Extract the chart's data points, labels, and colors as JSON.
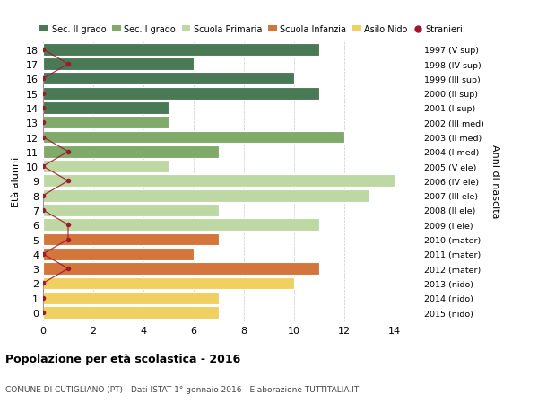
{
  "ages": [
    18,
    17,
    16,
    15,
    14,
    13,
    12,
    11,
    10,
    9,
    8,
    7,
    6,
    5,
    4,
    3,
    2,
    1,
    0
  ],
  "right_labels": [
    "1997 (V sup)",
    "1998 (IV sup)",
    "1999 (III sup)",
    "2000 (II sup)",
    "2001 (I sup)",
    "2002 (III med)",
    "2003 (II med)",
    "2004 (I med)",
    "2005 (V ele)",
    "2006 (IV ele)",
    "2007 (III ele)",
    "2008 (II ele)",
    "2009 (I ele)",
    "2010 (mater)",
    "2011 (mater)",
    "2012 (mater)",
    "2013 (nido)",
    "2014 (nido)",
    "2015 (nido)"
  ],
  "bar_values": [
    11,
    6,
    10,
    11,
    5,
    5,
    12,
    7,
    5,
    14,
    13,
    7,
    11,
    7,
    6,
    11,
    10,
    7,
    7
  ],
  "bar_colors": [
    "#4a7a55",
    "#4a7a55",
    "#4a7a55",
    "#4a7a55",
    "#4a7a55",
    "#7faa6a",
    "#7faa6a",
    "#7faa6a",
    "#bdd8a3",
    "#bdd8a3",
    "#bdd8a3",
    "#bdd8a3",
    "#bdd8a3",
    "#d4763b",
    "#d4763b",
    "#d4763b",
    "#f0d060",
    "#f0d060",
    "#f0d060"
  ],
  "stranieri_values": [
    0,
    1,
    0,
    0,
    0,
    0,
    0,
    1,
    0,
    1,
    0,
    0,
    1,
    1,
    0,
    1,
    0,
    0,
    0
  ],
  "legend_labels": [
    "Sec. II grado",
    "Sec. I grado",
    "Scuola Primaria",
    "Scuola Infanzia",
    "Asilo Nido",
    "Stranieri"
  ],
  "legend_colors": [
    "#4a7a55",
    "#7faa6a",
    "#bdd8a3",
    "#d4763b",
    "#f0d060",
    "#a0182a"
  ],
  "ylabel": "Età alunni",
  "right_ylabel": "Anni di nascita",
  "title": "Popolazione per età scolastica - 2016",
  "subtitle": "COMUNE DI CUTIGLIANO (PT) - Dati ISTAT 1° gennaio 2016 - Elaborazione TUTTITALIA.IT",
  "xlim": [
    0,
    15
  ],
  "xticks": [
    0,
    2,
    4,
    6,
    8,
    10,
    12,
    14
  ],
  "stranieri_color": "#a0182a",
  "background_color": "#ffffff",
  "bar_edge_color": "#ffffff",
  "bar_height": 0.85
}
